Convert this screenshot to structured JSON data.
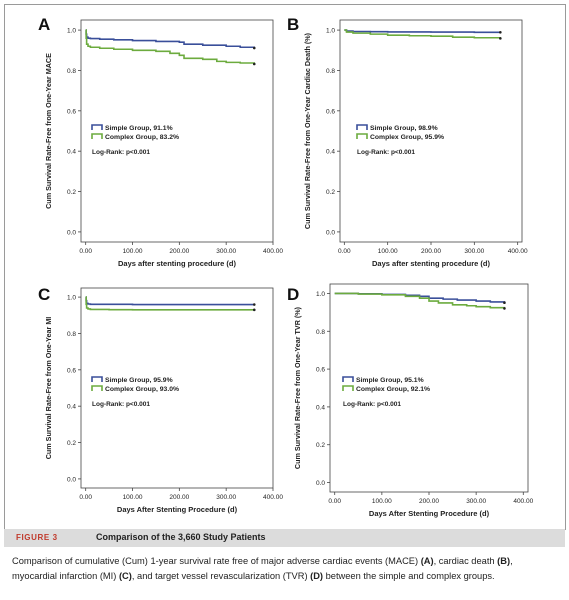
{
  "figure": {
    "label": "FIGURE 3",
    "title": "Comparison of the 3,660 Study Patients",
    "caption": {
      "t1": "Comparison of cumulative (Cum) 1-year survival rate free of major adverse cardiac events (MACE) ",
      "pA": "(A)",
      "t2": ", cardiac death ",
      "pB": "(B)",
      "t3": ", myocardial infarction (MI) ",
      "pC": "(C)",
      "t4": ", and target vessel revascularization (TVR) ",
      "pD": "(D)",
      "t5": " between the simple and complex groups."
    }
  },
  "colors": {
    "simple": "#3a4f9a",
    "complex": "#6cab3e",
    "axis": "#444444"
  },
  "chart_data": [
    {
      "panel": "A",
      "type": "line",
      "ylabel": "Cum Survival Rate-Free from One-Year MACE",
      "xlabel": "Days after stenting procedure (d)",
      "xlim": [
        -10,
        400
      ],
      "ylim": [
        -0.05,
        1.05
      ],
      "x_ticks": [
        "0.00",
        "100.00",
        "200.00",
        "300.00",
        "400.00"
      ],
      "x_tick_values": [
        0,
        100,
        200,
        300,
        400
      ],
      "y_ticks": [
        "0.0",
        "0.2",
        "0.4",
        "0.6",
        "0.8",
        "1.0"
      ],
      "y_tick_values": [
        0,
        0.2,
        0.4,
        0.6,
        0.8,
        1.0
      ],
      "legend": {
        "position": "middle-left",
        "simple": "Simple Group, 91.1%",
        "complex": "Complex Group, 83.2%",
        "logrank": "Log-Rank: p<0.001"
      },
      "series": [
        {
          "key": "simple",
          "x": [
            0,
            1,
            2,
            5,
            10,
            30,
            60,
            100,
            150,
            200,
            210,
            250,
            300,
            330,
            360
          ],
          "y": [
            1.0,
            0.98,
            0.965,
            0.96,
            0.958,
            0.955,
            0.952,
            0.948,
            0.944,
            0.94,
            0.93,
            0.925,
            0.92,
            0.915,
            0.911
          ]
        },
        {
          "key": "complex",
          "x": [
            0,
            1,
            2,
            5,
            10,
            30,
            60,
            100,
            150,
            180,
            200,
            210,
            250,
            280,
            300,
            330,
            360
          ],
          "y": [
            1.0,
            0.96,
            0.93,
            0.92,
            0.915,
            0.91,
            0.905,
            0.9,
            0.895,
            0.885,
            0.875,
            0.86,
            0.855,
            0.845,
            0.84,
            0.837,
            0.832
          ]
        }
      ]
    },
    {
      "panel": "B",
      "type": "line",
      "ylabel": "Cum Survival Rate-Free from One-Year Cardiac Death (%)",
      "xlabel": "Days after stenting procedure (d)",
      "xlim": [
        -10,
        410
      ],
      "ylim": [
        -0.05,
        1.05
      ],
      "x_ticks": [
        "0.00",
        "100.00",
        "200.00",
        "300.00",
        "400.00"
      ],
      "x_tick_values": [
        0,
        100,
        200,
        300,
        400
      ],
      "y_ticks": [
        "0.0",
        "0.2",
        "0.4",
        "0.6",
        "0.8",
        "1.0"
      ],
      "y_tick_values": [
        0,
        0.2,
        0.4,
        0.6,
        0.8,
        1.0
      ],
      "legend": {
        "position": "middle-left",
        "simple": "Simple Group, 98.9%",
        "complex": "Complex Group, 95.9%",
        "logrank": "Log-Rank: p<0.001"
      },
      "series": [
        {
          "key": "simple",
          "x": [
            0,
            5,
            20,
            60,
            100,
            200,
            300,
            360
          ],
          "y": [
            1.0,
            0.995,
            0.993,
            0.992,
            0.991,
            0.99,
            0.989,
            0.989
          ]
        },
        {
          "key": "complex",
          "x": [
            0,
            5,
            20,
            60,
            100,
            150,
            200,
            250,
            300,
            360
          ],
          "y": [
            1.0,
            0.99,
            0.985,
            0.98,
            0.975,
            0.972,
            0.97,
            0.965,
            0.962,
            0.959
          ]
        }
      ]
    },
    {
      "panel": "C",
      "type": "line",
      "ylabel": "Cum Survival Rate-Free from One-Year MI",
      "xlabel": "Days After Stenting Procedure (d)",
      "xlim": [
        -10,
        400
      ],
      "ylim": [
        -0.05,
        1.05
      ],
      "x_ticks": [
        "0.00",
        "100.00",
        "200.00",
        "300.00",
        "400.00"
      ],
      "x_tick_values": [
        0,
        100,
        200,
        300,
        400
      ],
      "y_ticks": [
        "0.0",
        "0.2",
        "0.4",
        "0.6",
        "0.8",
        "1.0"
      ],
      "y_tick_values": [
        0,
        0.2,
        0.4,
        0.6,
        0.8,
        1.0
      ],
      "legend": {
        "position": "middle-left",
        "simple": "Simple Group, 95.9%",
        "complex": "Complex Group, 93.0%",
        "logrank": "Log-Rank: p<0.001"
      },
      "series": [
        {
          "key": "simple",
          "x": [
            0,
            1,
            2,
            5,
            10,
            50,
            100,
            200,
            300,
            360
          ],
          "y": [
            1.0,
            0.98,
            0.965,
            0.962,
            0.96,
            0.96,
            0.959,
            0.959,
            0.959,
            0.959
          ]
        },
        {
          "key": "complex",
          "x": [
            0,
            1,
            2,
            5,
            10,
            50,
            100,
            200,
            300,
            360
          ],
          "y": [
            1.0,
            0.96,
            0.94,
            0.935,
            0.932,
            0.931,
            0.93,
            0.93,
            0.93,
            0.93
          ]
        }
      ]
    },
    {
      "panel": "D",
      "type": "line",
      "ylabel": "Cum Survival Rate-Free from One-Year TVR (%)",
      "xlabel": "Days After Stenting Procedure (d)",
      "xlim": [
        -10,
        410
      ],
      "ylim": [
        -0.05,
        1.05
      ],
      "x_ticks": [
        "0.00",
        "100.00",
        "200.00",
        "300.00",
        "400.00"
      ],
      "x_tick_values": [
        0,
        100,
        200,
        300,
        400
      ],
      "y_ticks": [
        "0.0",
        "0.2",
        "0.4",
        "0.6",
        "0.8",
        "1.0"
      ],
      "y_tick_values": [
        0,
        0.2,
        0.4,
        0.6,
        0.8,
        1.0
      ],
      "legend": {
        "position": "middle-left",
        "simple": "Simple Group, 95.1%",
        "complex": "Complex Group, 92.1%",
        "logrank": "Log-Rank: p<0.001"
      },
      "series": [
        {
          "key": "simple",
          "x": [
            0,
            50,
            100,
            150,
            180,
            200,
            230,
            260,
            300,
            330,
            360
          ],
          "y": [
            1.0,
            0.998,
            0.995,
            0.99,
            0.985,
            0.975,
            0.97,
            0.965,
            0.96,
            0.955,
            0.951
          ]
        },
        {
          "key": "complex",
          "x": [
            0,
            50,
            100,
            150,
            180,
            200,
            220,
            250,
            280,
            300,
            330,
            360
          ],
          "y": [
            1.0,
            0.997,
            0.993,
            0.985,
            0.975,
            0.96,
            0.95,
            0.94,
            0.935,
            0.93,
            0.925,
            0.921
          ]
        }
      ]
    }
  ]
}
